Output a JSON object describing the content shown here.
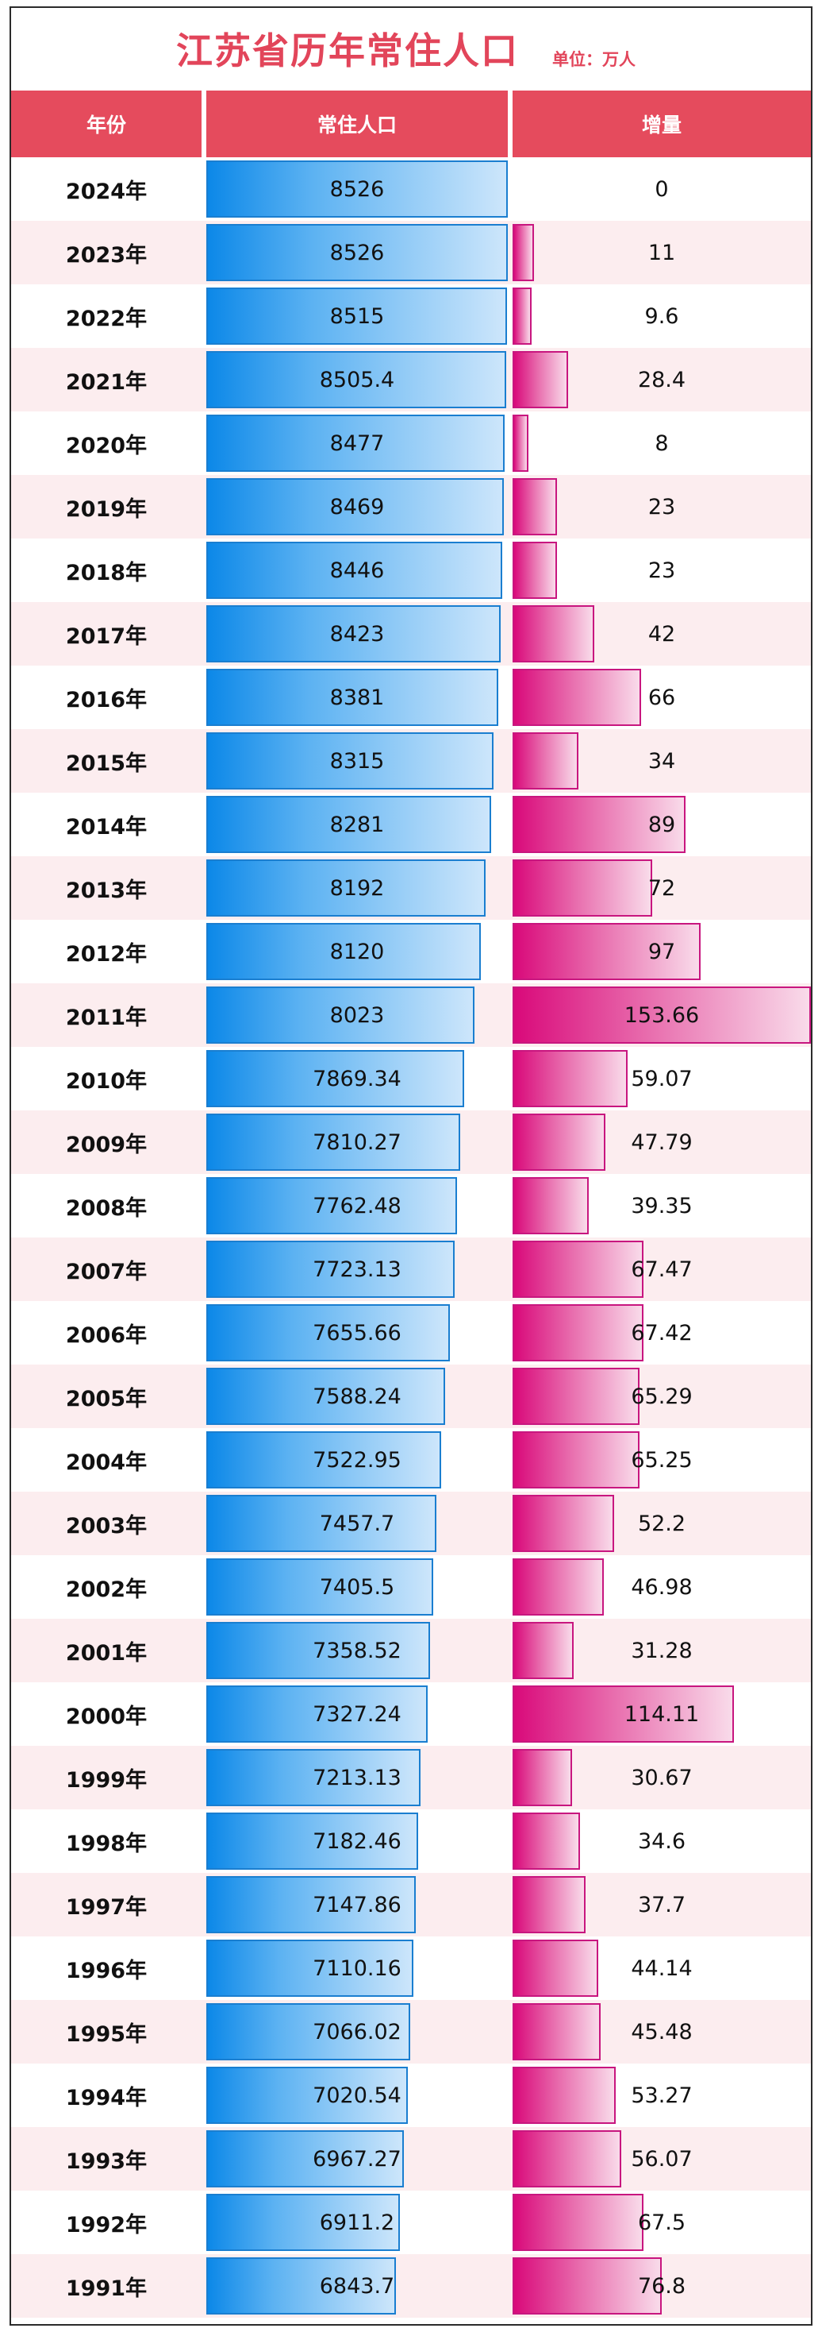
{
  "chart_data": {
    "type": "table",
    "title": "江苏省历年常住人口",
    "unit_label": "单位：万人",
    "headers": [
      "年份",
      "常住人口",
      "增量"
    ],
    "rows": [
      {
        "year": "2024年",
        "population": 8526,
        "pop_label": "8526",
        "increase": 0,
        "inc_label": "0"
      },
      {
        "year": "2023年",
        "population": 8526,
        "pop_label": "8526",
        "increase": 11,
        "inc_label": "11"
      },
      {
        "year": "2022年",
        "population": 8515,
        "pop_label": "8515",
        "increase": 9.6,
        "inc_label": "9.6"
      },
      {
        "year": "2021年",
        "population": 8505.4,
        "pop_label": "8505.4",
        "increase": 28.4,
        "inc_label": "28.4"
      },
      {
        "year": "2020年",
        "population": 8477,
        "pop_label": "8477",
        "increase": 8,
        "inc_label": "8"
      },
      {
        "year": "2019年",
        "population": 8469,
        "pop_label": "8469",
        "increase": 23,
        "inc_label": "23"
      },
      {
        "year": "2018年",
        "population": 8446,
        "pop_label": "8446",
        "increase": 23,
        "inc_label": "23"
      },
      {
        "year": "2017年",
        "population": 8423,
        "pop_label": "8423",
        "increase": 42,
        "inc_label": "42"
      },
      {
        "year": "2016年",
        "population": 8381,
        "pop_label": "8381",
        "increase": 66,
        "inc_label": "66"
      },
      {
        "year": "2015年",
        "population": 8315,
        "pop_label": "8315",
        "increase": 34,
        "inc_label": "34"
      },
      {
        "year": "2014年",
        "population": 8281,
        "pop_label": "8281",
        "increase": 89,
        "inc_label": "89"
      },
      {
        "year": "2013年",
        "population": 8192,
        "pop_label": "8192",
        "increase": 72,
        "inc_label": "72"
      },
      {
        "year": "2012年",
        "population": 8120,
        "pop_label": "8120",
        "increase": 97,
        "inc_label": "97"
      },
      {
        "year": "2011年",
        "population": 8023,
        "pop_label": "8023",
        "increase": 153.66,
        "inc_label": "153.66"
      },
      {
        "year": "2010年",
        "population": 7869.34,
        "pop_label": "7869.34",
        "increase": 59.07,
        "inc_label": "59.07"
      },
      {
        "year": "2009年",
        "population": 7810.27,
        "pop_label": "7810.27",
        "increase": 47.79,
        "inc_label": "47.79"
      },
      {
        "year": "2008年",
        "population": 7762.48,
        "pop_label": "7762.48",
        "increase": 39.35,
        "inc_label": "39.35"
      },
      {
        "year": "2007年",
        "population": 7723.13,
        "pop_label": "7723.13",
        "increase": 67.47,
        "inc_label": "67.47"
      },
      {
        "year": "2006年",
        "population": 7655.66,
        "pop_label": "7655.66",
        "increase": 67.42,
        "inc_label": "67.42"
      },
      {
        "year": "2005年",
        "population": 7588.24,
        "pop_label": "7588.24",
        "increase": 65.29,
        "inc_label": "65.29"
      },
      {
        "year": "2004年",
        "population": 7522.95,
        "pop_label": "7522.95",
        "increase": 65.25,
        "inc_label": "65.25"
      },
      {
        "year": "2003年",
        "population": 7457.7,
        "pop_label": "7457.7",
        "increase": 52.2,
        "inc_label": "52.2"
      },
      {
        "year": "2002年",
        "population": 7405.5,
        "pop_label": "7405.5",
        "increase": 46.98,
        "inc_label": "46.98"
      },
      {
        "year": "2001年",
        "population": 7358.52,
        "pop_label": "7358.52",
        "increase": 31.28,
        "inc_label": "31.28"
      },
      {
        "year": "2000年",
        "population": 7327.24,
        "pop_label": "7327.24",
        "increase": 114.11,
        "inc_label": "114.11"
      },
      {
        "year": "1999年",
        "population": 7213.13,
        "pop_label": "7213.13",
        "increase": 30.67,
        "inc_label": "30.67"
      },
      {
        "year": "1998年",
        "population": 7182.46,
        "pop_label": "7182.46",
        "increase": 34.6,
        "inc_label": "34.6"
      },
      {
        "year": "1997年",
        "population": 7147.86,
        "pop_label": "7147.86",
        "increase": 37.7,
        "inc_label": "37.7"
      },
      {
        "year": "1996年",
        "population": 7110.16,
        "pop_label": "7110.16",
        "increase": 44.14,
        "inc_label": "44.14"
      },
      {
        "year": "1995年",
        "population": 7066.02,
        "pop_label": "7066.02",
        "increase": 45.48,
        "inc_label": "45.48"
      },
      {
        "year": "1994年",
        "population": 7020.54,
        "pop_label": "7020.54",
        "increase": 53.27,
        "inc_label": "53.27"
      },
      {
        "year": "1993年",
        "population": 6967.27,
        "pop_label": "6967.27",
        "increase": 56.07,
        "inc_label": "56.07"
      },
      {
        "year": "1992年",
        "population": 6911.2,
        "pop_label": "6911.2",
        "increase": 67.5,
        "inc_label": "67.5"
      },
      {
        "year": "1991年",
        "population": 6843.7,
        "pop_label": "6843.7",
        "increase": 76.8,
        "inc_label": "76.8"
      }
    ]
  },
  "colors": {
    "title": "#e2455a",
    "header_bg": "#e54b5d",
    "alt_row_bg": "#fcedef",
    "pop_bar": "#0c88e8",
    "inc_bar": "#d9097a"
  }
}
